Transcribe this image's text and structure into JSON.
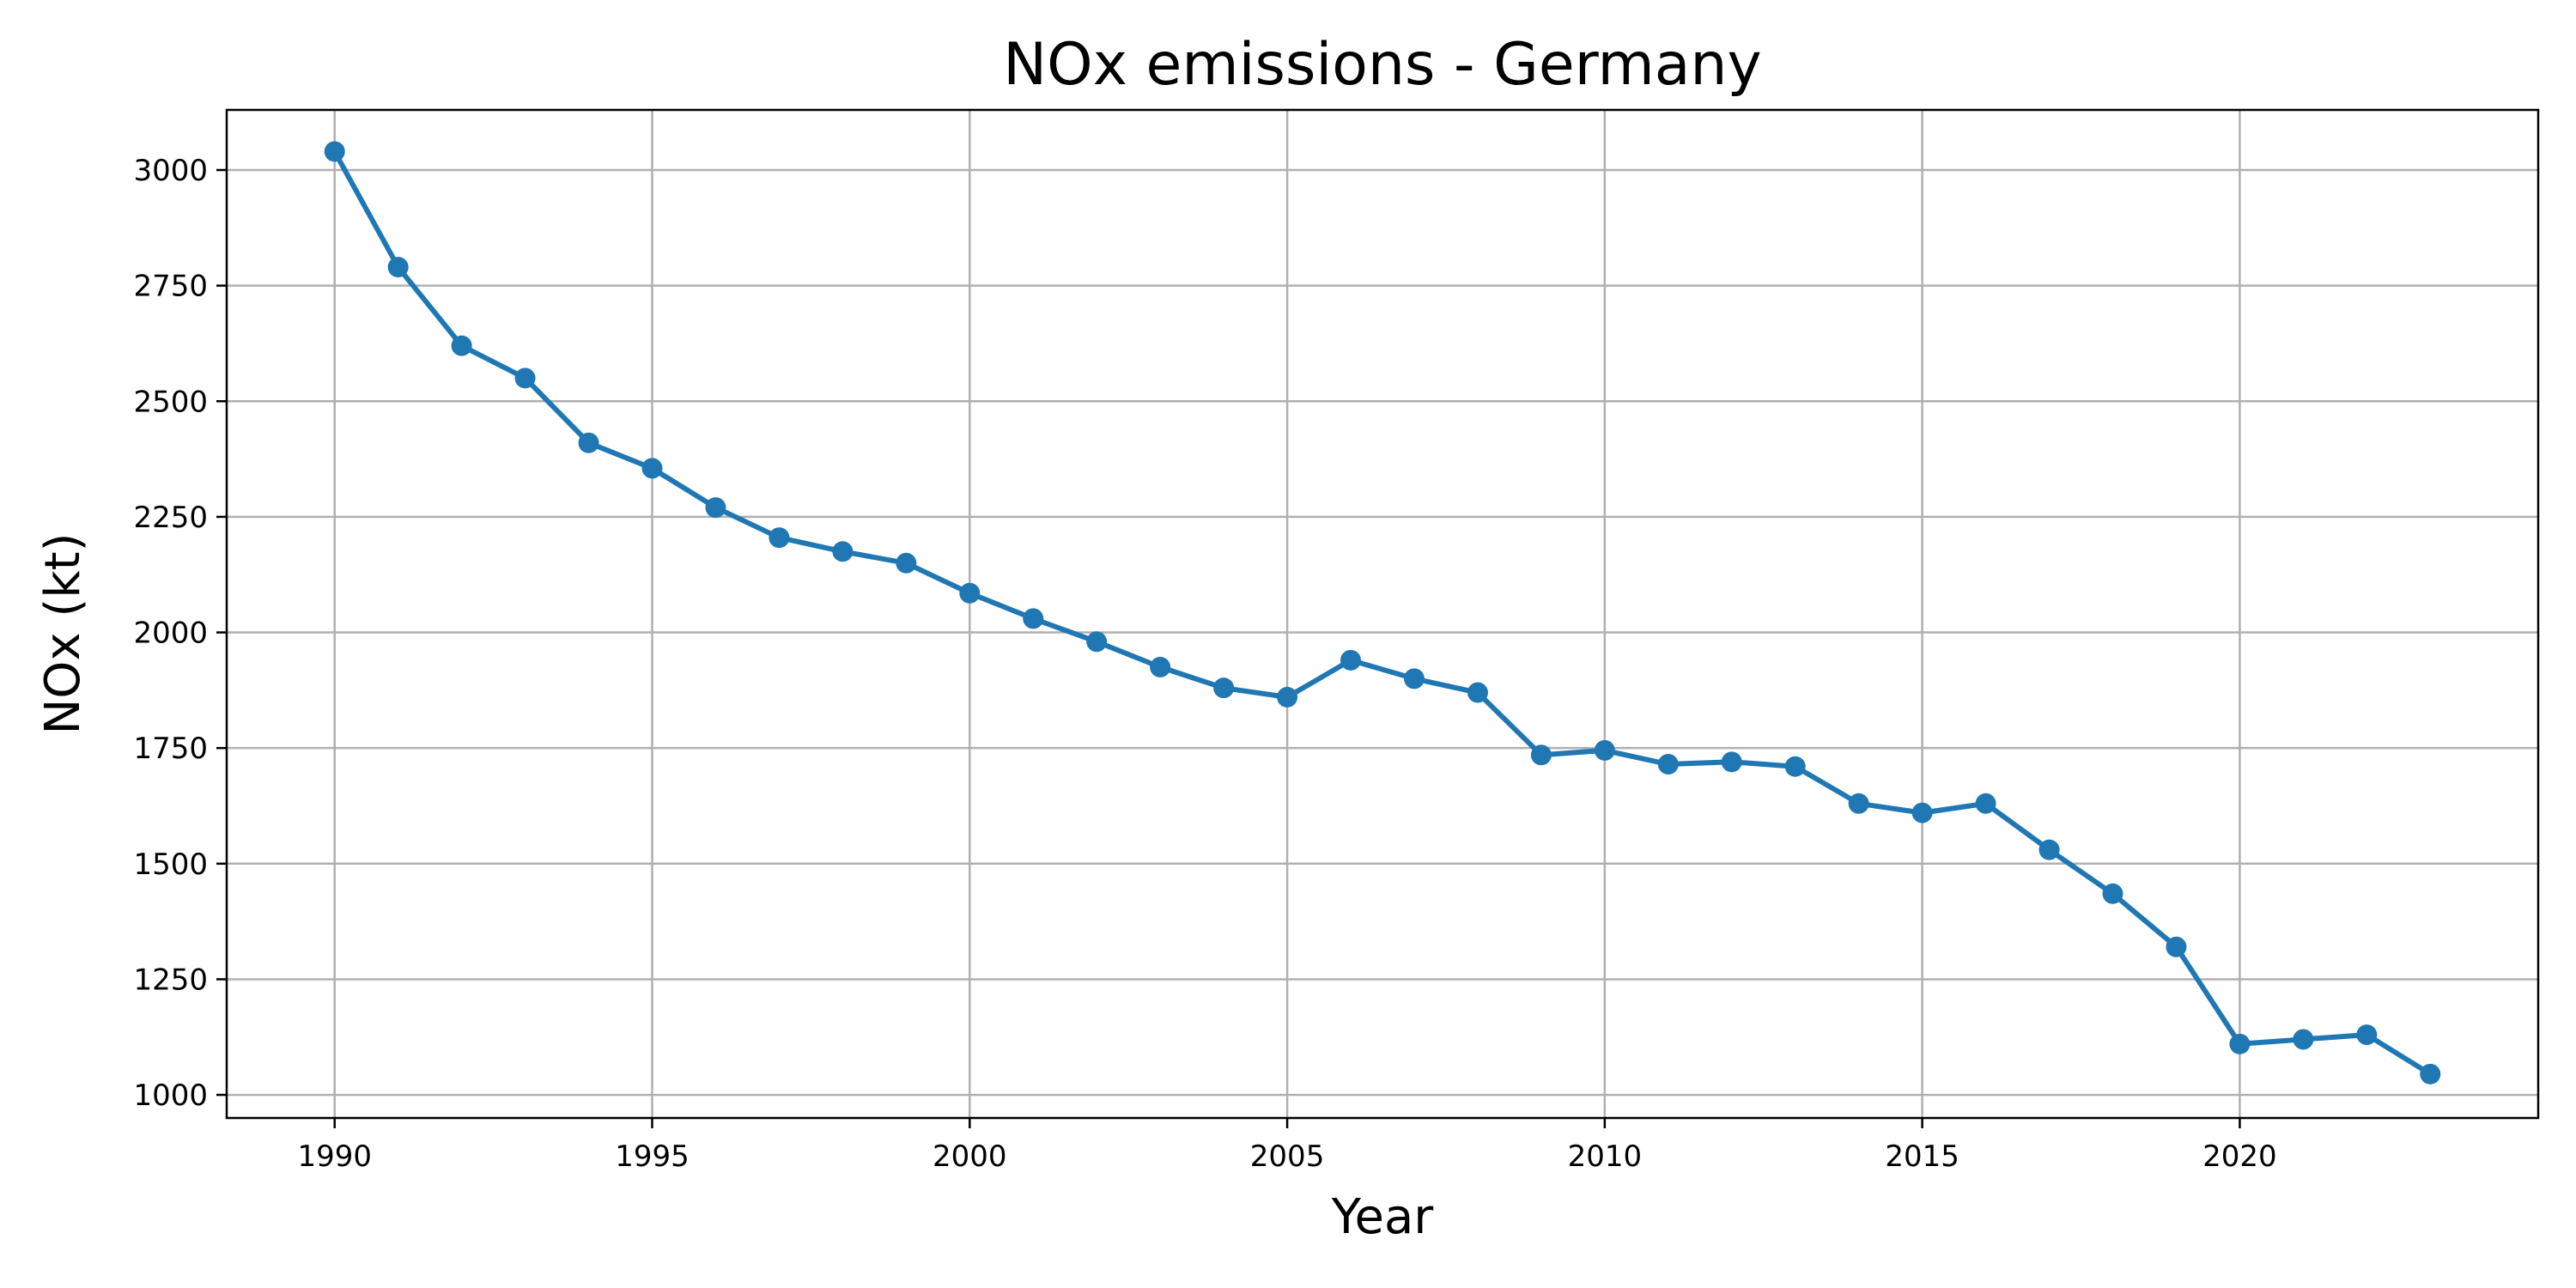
{
  "chart_data": {
    "type": "line",
    "title": "NOx emissions - Germany",
    "xlabel": "Year",
    "ylabel": "NOx (kt)",
    "xlim": [
      1988.3,
      2024.7
    ],
    "ylim": [
      950,
      3130
    ],
    "xticks": [
      1990,
      1995,
      2000,
      2005,
      2010,
      2015,
      2020
    ],
    "yticks": [
      1000,
      1250,
      1500,
      1750,
      2000,
      2250,
      2500,
      2750,
      3000
    ],
    "grid": true,
    "color": "#1f77b4",
    "marker": "circle",
    "x": [
      1990,
      1991,
      1992,
      1993,
      1994,
      1995,
      1996,
      1997,
      1998,
      1999,
      2000,
      2001,
      2002,
      2003,
      2004,
      2005,
      2006,
      2007,
      2008,
      2009,
      2010,
      2011,
      2012,
      2013,
      2014,
      2015,
      2016,
      2017,
      2018,
      2019,
      2020,
      2021,
      2022,
      2023
    ],
    "y": [
      3040,
      2790,
      2620,
      2550,
      2410,
      2355,
      2270,
      2205,
      2175,
      2150,
      2085,
      2030,
      1980,
      1925,
      1880,
      1860,
      1940,
      1900,
      1870,
      1735,
      1745,
      1715,
      1720,
      1710,
      1630,
      1610,
      1630,
      1530,
      1435,
      1320,
      1110,
      1120,
      1130,
      1045
    ]
  }
}
